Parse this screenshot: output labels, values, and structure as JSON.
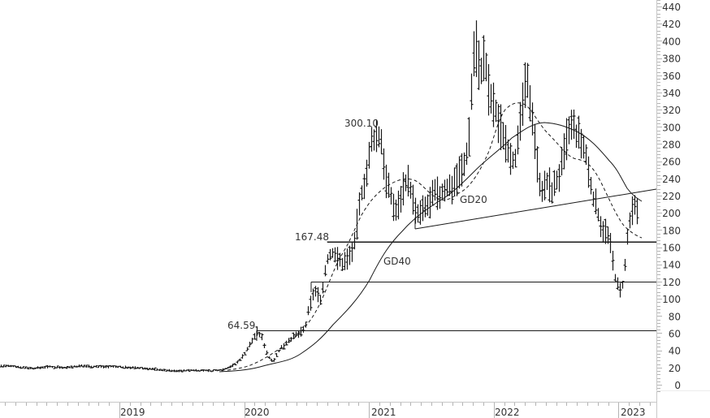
{
  "chart_data": {
    "type": "line",
    "subtype": "ohlc-bar",
    "title": "",
    "xlabel": "",
    "ylabel": "",
    "ylim": [
      0,
      440
    ],
    "grid": false,
    "y_ticks": [
      0,
      20,
      40,
      60,
      80,
      100,
      120,
      140,
      160,
      180,
      200,
      220,
      240,
      260,
      280,
      300,
      320,
      340,
      360,
      380,
      400,
      420,
      440
    ],
    "x_ticks": [
      "2019",
      "2020",
      "2021",
      "2022",
      "2023"
    ],
    "annotations": [
      {
        "label": "300.10",
        "value": 300.1,
        "x": "2020-12"
      },
      {
        "label": "167.48",
        "value": 167.48,
        "x": "2020-08"
      },
      {
        "label": "64.59",
        "value": 64.59,
        "x": "2020-01"
      },
      {
        "label": "GD20",
        "type": "moving-average",
        "style": "dashed"
      },
      {
        "label": "GD40",
        "type": "moving-average",
        "style": "solid"
      }
    ],
    "horizontal_lines": [
      167.48,
      120,
      64.59
    ],
    "trendline": {
      "from": {
        "x": "2021-03",
        "y": 182
      },
      "to": {
        "x": "2023-02",
        "y": 228
      }
    },
    "series": [
      {
        "name": "Price",
        "x": [
          "2018-01",
          "2018-03",
          "2018-05",
          "2018-07",
          "2018-09",
          "2018-11",
          "2019-01",
          "2019-03",
          "2019-05",
          "2019-07",
          "2019-09",
          "2019-11",
          "2020-01",
          "2020-02",
          "2020-03",
          "2020-04",
          "2020-05",
          "2020-06",
          "2020-07",
          "2020-08",
          "2020-09",
          "2020-10",
          "2020-11",
          "2020-12",
          "2021-01",
          "2021-02",
          "2021-03",
          "2021-04",
          "2021-05",
          "2021-06",
          "2021-07",
          "2021-08",
          "2021-09",
          "2021-10",
          "2021-11",
          "2021-12",
          "2022-01",
          "2022-02",
          "2022-03",
          "2022-04",
          "2022-05",
          "2022-06",
          "2022-07",
          "2022-08",
          "2022-09",
          "2022-10",
          "2022-11",
          "2022-12",
          "2023-01"
        ],
        "values": [
          22,
          21,
          20,
          21,
          22,
          20,
          20,
          19,
          18,
          17,
          16,
          17,
          20,
          60,
          35,
          45,
          55,
          65,
          95,
          150,
          140,
          155,
          210,
          285,
          230,
          215,
          240,
          195,
          205,
          215,
          220,
          240,
          260,
          395,
          360,
          320,
          290,
          270,
          340,
          320,
          240,
          220,
          240,
          300,
          295,
          280,
          230,
          185,
          200
        ]
      },
      {
        "name": "GD20",
        "style": "dashed",
        "x": [
          "2019-09",
          "2020-01",
          "2020-05",
          "2020-09",
          "2021-01",
          "2021-05",
          "2021-09",
          "2022-01",
          "2022-05",
          "2022-09",
          "2023-01"
        ],
        "values": [
          17,
          22,
          45,
          110,
          210,
          235,
          232,
          325,
          280,
          250,
          175
        ]
      },
      {
        "name": "GD40",
        "style": "solid",
        "x": [
          "2019-09",
          "2020-01",
          "2020-05",
          "2020-09",
          "2021-01",
          "2021-05",
          "2021-09",
          "2022-01",
          "2022-05",
          "2022-09",
          "2023-01"
        ],
        "values": [
          16,
          18,
          30,
          65,
          175,
          210,
          222,
          290,
          300,
          260,
          215
        ]
      }
    ]
  },
  "labels": {
    "ann_300": "300.10",
    "ann_167": "167.48",
    "ann_64": "64.59",
    "gd20": "GD20",
    "gd40": "GD40",
    "y": [
      "440",
      "420",
      "400",
      "380",
      "360",
      "340",
      "320",
      "300",
      "280",
      "260",
      "240",
      "220",
      "200",
      "180",
      "160",
      "140",
      "120",
      "100",
      "80",
      "60",
      "40",
      "20",
      "0"
    ],
    "x": [
      "2019",
      "2020",
      "2021",
      "2022",
      "2023"
    ]
  }
}
